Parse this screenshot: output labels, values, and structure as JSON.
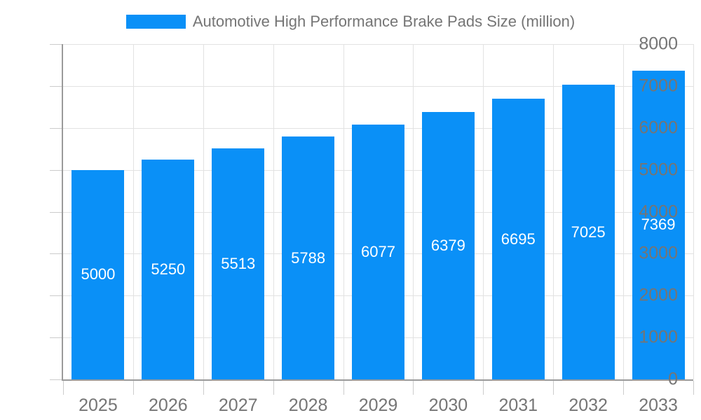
{
  "legend": {
    "label": "Automotive High Performance Brake Pads Size (million)"
  },
  "chart_data": {
    "type": "bar",
    "title": "Automotive High Performance Brake Pads Size (million)",
    "categories": [
      "2025",
      "2026",
      "2027",
      "2028",
      "2029",
      "2030",
      "2031",
      "2032",
      "2033"
    ],
    "values": [
      5000,
      5250,
      5513,
      5788,
      6077,
      6379,
      6695,
      7025,
      7369
    ],
    "xlabel": "",
    "ylabel": "",
    "ylim": [
      0,
      8000
    ],
    "yticks": [
      0,
      1000,
      2000,
      3000,
      4000,
      5000,
      6000,
      7000,
      8000
    ],
    "grid": true,
    "legend_position": "top",
    "bar_value_labels_inside": true,
    "colors": {
      "bar": "#0a90f7",
      "bar_label_text": "#ffffff",
      "axis_text": "#757575",
      "legend_text": "#757575",
      "gridline": "#e2e2e2",
      "axis_line": "#9a9a9a",
      "tick": "#cccccc",
      "background": "#ffffff"
    }
  }
}
